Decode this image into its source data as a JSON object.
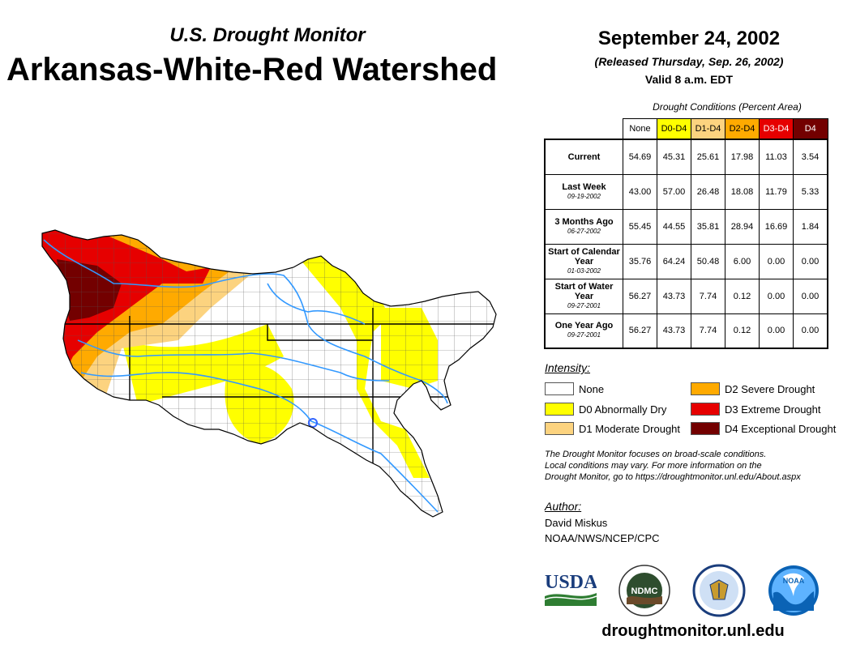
{
  "header": {
    "subtitle": "U.S. Drought Monitor",
    "title": "Arkansas-White-Red Watershed",
    "date": "September 24, 2002",
    "released": "(Released Thursday, Sep. 26, 2002)",
    "valid": "Valid 8 a.m. EDT"
  },
  "table": {
    "caption": "Drought Conditions (Percent Area)",
    "columns": [
      "None",
      "D0-D4",
      "D1-D4",
      "D2-D4",
      "D3-D4",
      "D4"
    ],
    "column_colors": [
      "#ffffff",
      "#ffff00",
      "#fcd37f",
      "#ffaa00",
      "#e60000",
      "#730000"
    ],
    "rows": [
      {
        "label": "Current",
        "date": "",
        "values": [
          "54.69",
          "45.31",
          "25.61",
          "17.98",
          "11.03",
          "3.54"
        ]
      },
      {
        "label": "Last Week",
        "date": "09-19-2002",
        "values": [
          "43.00",
          "57.00",
          "26.48",
          "18.08",
          "11.79",
          "5.33"
        ]
      },
      {
        "label": "3 Months Ago",
        "date": "06-27-2002",
        "values": [
          "55.45",
          "44.55",
          "35.81",
          "28.94",
          "16.69",
          "1.84"
        ]
      },
      {
        "label": "Start of Calendar Year",
        "date": "01-03-2002",
        "values": [
          "35.76",
          "64.24",
          "50.48",
          "6.00",
          "0.00",
          "0.00"
        ]
      },
      {
        "label": "Start of Water Year",
        "date": "09-27-2001",
        "values": [
          "56.27",
          "43.73",
          "7.74",
          "0.12",
          "0.00",
          "0.00"
        ]
      },
      {
        "label": "One Year Ago",
        "date": "09-27-2001",
        "values": [
          "56.27",
          "43.73",
          "7.74",
          "0.12",
          "0.00",
          "0.00"
        ]
      }
    ]
  },
  "legend": {
    "title": "Intensity:",
    "items": [
      {
        "label": "None",
        "color": "#ffffff"
      },
      {
        "label": "D0 Abnormally Dry",
        "color": "#ffff00"
      },
      {
        "label": "D1 Moderate Drought",
        "color": "#fcd37f"
      },
      {
        "label": "D2 Severe Drought",
        "color": "#ffaa00"
      },
      {
        "label": "D3 Extreme Drought",
        "color": "#e60000"
      },
      {
        "label": "D4 Exceptional Drought",
        "color": "#730000"
      }
    ]
  },
  "note": {
    "line1": "The Drought Monitor focuses on broad-scale conditions.",
    "line2": "Local conditions may vary. For more information on the",
    "line3": "Drought Monitor, go to https://droughtmonitor.unl.edu/About.aspx"
  },
  "author": {
    "label": "Author:",
    "name": "David Miskus",
    "org": "NOAA/NWS/NCEP/CPC"
  },
  "logos": {
    "usda": "USDA",
    "ndmc": "NDMC",
    "noaa": "NOAA"
  },
  "footer": {
    "site": "droughtmonitor.unl.edu"
  }
}
